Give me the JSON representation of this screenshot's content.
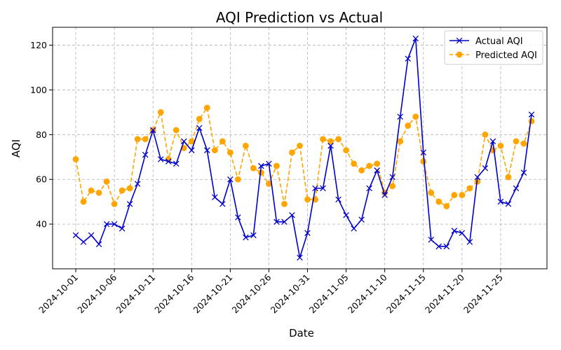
{
  "chart_data": {
    "type": "line",
    "title": "AQI Prediction vs Actual",
    "xlabel": "Date",
    "ylabel": "AQI",
    "x_tick_labels": [
      "2024-10-01",
      "2024-10-06",
      "2024-10-11",
      "2024-10-16",
      "2024-10-21",
      "2024-10-26",
      "2024-10-31",
      "2024-11-05",
      "2024-11-10",
      "2024-11-15",
      "2024-11-20",
      "2024-11-25"
    ],
    "x_ticks": [
      "2024-10-01",
      "2024-10-06",
      "2024-10-11",
      "2024-10-16",
      "2024-10-21",
      "2024-10-26",
      "2024-10-31",
      "2024-11-05",
      "2024-11-10",
      "2024-11-15",
      "2024-11-20",
      "2024-11-25"
    ],
    "y_ticks": [
      40,
      60,
      80,
      100,
      120
    ],
    "y_tick_labels": [
      "40",
      "60",
      "80",
      "100",
      "120"
    ],
    "ylim": [
      20,
      128
    ],
    "xlim": [
      "2024-09-28",
      "2024-12-01"
    ],
    "grid": true,
    "legend_position": "top-right",
    "x": [
      "2024-10-01",
      "2024-10-02",
      "2024-10-03",
      "2024-10-04",
      "2024-10-05",
      "2024-10-06",
      "2024-10-07",
      "2024-10-08",
      "2024-10-09",
      "2024-10-10",
      "2024-10-11",
      "2024-10-12",
      "2024-10-13",
      "2024-10-14",
      "2024-10-15",
      "2024-10-16",
      "2024-10-17",
      "2024-10-18",
      "2024-10-19",
      "2024-10-20",
      "2024-10-21",
      "2024-10-22",
      "2024-10-23",
      "2024-10-24",
      "2024-10-25",
      "2024-10-26",
      "2024-10-27",
      "2024-10-28",
      "2024-10-29",
      "2024-10-30",
      "2024-10-31",
      "2024-11-01",
      "2024-11-02",
      "2024-11-03",
      "2024-11-04",
      "2024-11-05",
      "2024-11-06",
      "2024-11-07",
      "2024-11-08",
      "2024-11-09",
      "2024-11-10",
      "2024-11-11",
      "2024-11-12",
      "2024-11-13",
      "2024-11-14",
      "2024-11-15",
      "2024-11-16",
      "2024-11-17",
      "2024-11-18",
      "2024-11-19",
      "2024-11-20",
      "2024-11-21",
      "2024-11-22",
      "2024-11-23",
      "2024-11-24",
      "2024-11-25",
      "2024-11-26",
      "2024-11-27",
      "2024-11-28",
      "2024-11-29"
    ],
    "series": [
      {
        "name": "Actual AQI",
        "color": "#0000cc",
        "marker": "x",
        "line_style": "solid",
        "values": [
          35,
          32,
          35,
          31,
          40,
          40,
          38,
          49,
          58,
          71,
          82,
          69,
          68,
          67,
          77,
          73,
          83,
          73,
          52,
          49,
          60,
          43,
          34,
          35,
          66,
          67,
          41,
          41,
          44,
          25,
          36,
          56,
          56,
          75,
          51,
          44,
          38,
          42,
          56,
          64,
          53,
          61,
          88,
          114,
          123,
          72,
          33,
          30,
          30,
          37,
          36,
          32,
          61,
          65,
          77,
          50,
          49,
          56,
          63,
          89
        ]
      },
      {
        "name": "Predicted AQI",
        "color": "#ffa500",
        "marker": "o",
        "line_style": "dashed",
        "values": [
          69,
          50,
          55,
          54,
          59,
          49,
          55,
          56,
          78,
          78,
          82,
          90,
          69,
          82,
          74,
          77,
          87,
          92,
          73,
          77,
          72,
          60,
          75,
          65,
          63,
          58,
          66,
          49,
          72,
          75,
          51,
          51,
          78,
          77,
          78,
          73,
          67,
          64,
          66,
          67,
          54,
          57,
          77,
          84,
          88,
          68,
          54,
          50,
          48,
          53,
          53,
          56,
          59,
          80,
          73,
          75,
          61,
          77,
          76,
          86
        ]
      }
    ]
  }
}
